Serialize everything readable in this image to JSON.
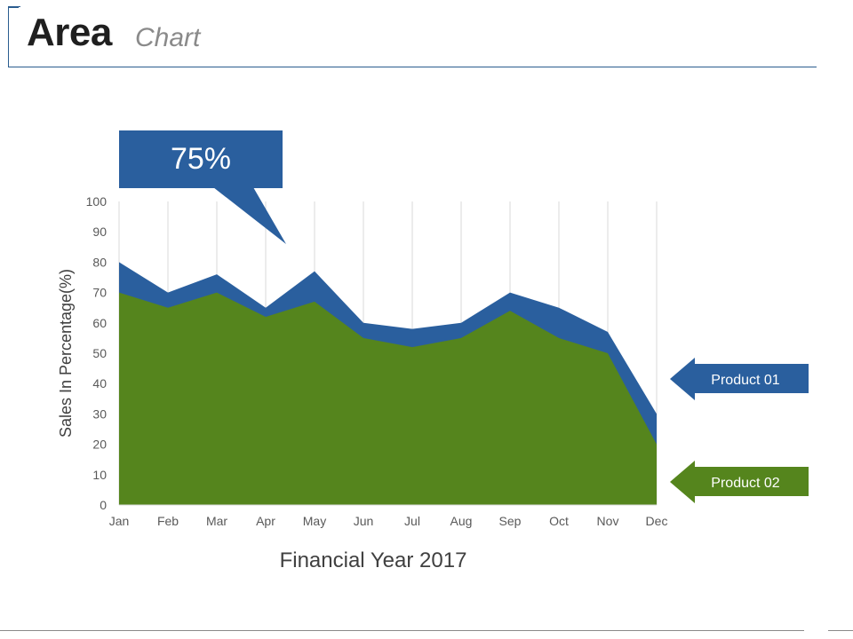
{
  "header": {
    "title_main": "Area",
    "title_sub": "Chart"
  },
  "callout": {
    "text": "75%",
    "color": "#2a5f9e"
  },
  "chart_data": {
    "type": "area",
    "categories": [
      "Jan",
      "Feb",
      "Mar",
      "Apr",
      "May",
      "Jun",
      "Jul",
      "Aug",
      "Sep",
      "Oct",
      "Nov",
      "Dec"
    ],
    "series": [
      {
        "name": "Product 01",
        "color": "#2a5f9e",
        "values": [
          80,
          70,
          76,
          65,
          77,
          60,
          58,
          60,
          70,
          65,
          57,
          30
        ]
      },
      {
        "name": "Product 02",
        "color": "#55851d",
        "values": [
          70,
          65,
          70,
          62,
          67,
          55,
          52,
          55,
          64,
          55,
          50,
          20
        ]
      }
    ],
    "y_ticks": [
      "0",
      "10",
      "20",
      "30",
      "40",
      "50",
      "60",
      "70",
      "80",
      "90",
      "100"
    ],
    "ylim": [
      0,
      100
    ],
    "xlabel": "Financial Year 2017",
    "ylabel": "Sales In Percentage(%)",
    "grid": "vertical"
  }
}
